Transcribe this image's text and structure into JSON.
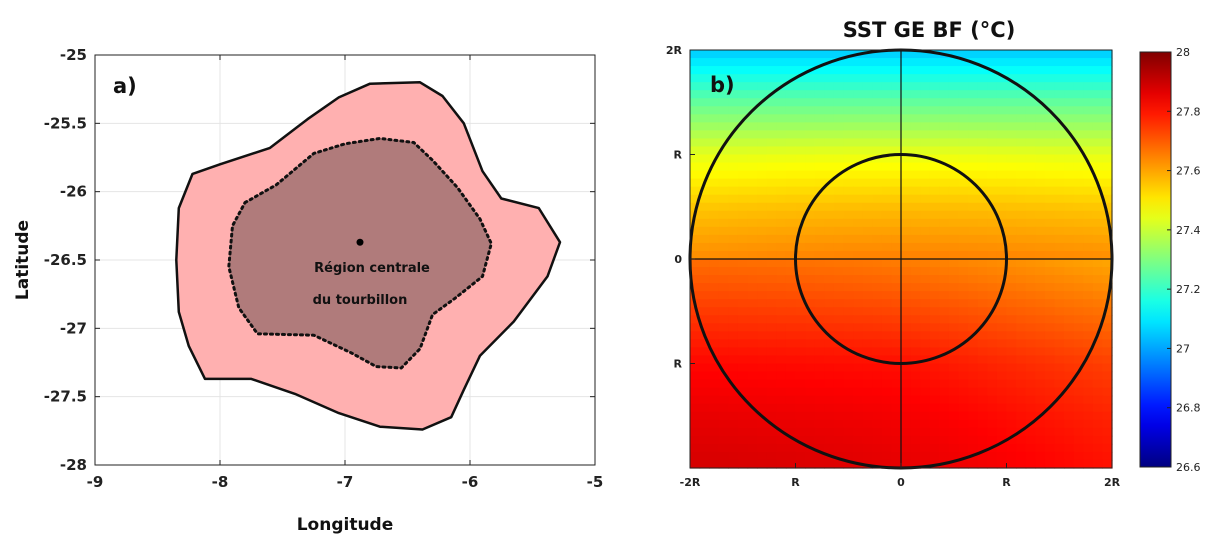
{
  "chart_data": [
    {
      "type": "area",
      "panel_label": "a)",
      "xlabel": "Longitude",
      "ylabel": "Latitude",
      "xlim": [
        -9,
        -5
      ],
      "ylim": [
        -28,
        -25
      ],
      "xticks": [
        -9,
        -8,
        -7,
        -6,
        -5
      ],
      "yticks": [
        -28,
        -27.5,
        -27,
        -26.5,
        -26,
        -25.5,
        -25
      ],
      "xtick_labels": [
        "-9",
        "-8",
        "-7",
        "-6",
        "-5"
      ],
      "ytick_labels": [
        "-28",
        "-27.5",
        "-27",
        "-26.5",
        "-26",
        "-25.5",
        "-25"
      ],
      "grid": true,
      "outer_contour": {
        "fill": "#ffb0b0",
        "points": [
          [
            -8.22,
            -25.87
          ],
          [
            -8.0,
            -25.8
          ],
          [
            -7.6,
            -25.68
          ],
          [
            -7.3,
            -25.47
          ],
          [
            -7.05,
            -25.31
          ],
          [
            -6.8,
            -25.21
          ],
          [
            -6.4,
            -25.2
          ],
          [
            -6.22,
            -25.3
          ],
          [
            -6.05,
            -25.5
          ],
          [
            -5.9,
            -25.85
          ],
          [
            -5.75,
            -26.05
          ],
          [
            -5.45,
            -26.12
          ],
          [
            -5.28,
            -26.37
          ],
          [
            -5.38,
            -26.62
          ],
          [
            -5.65,
            -26.95
          ],
          [
            -5.92,
            -27.2
          ],
          [
            -6.05,
            -27.45
          ],
          [
            -6.15,
            -27.65
          ],
          [
            -6.38,
            -27.74
          ],
          [
            -6.72,
            -27.72
          ],
          [
            -7.05,
            -27.62
          ],
          [
            -7.4,
            -27.48
          ],
          [
            -7.75,
            -27.37
          ],
          [
            -8.12,
            -27.37
          ],
          [
            -8.25,
            -27.13
          ],
          [
            -8.33,
            -26.88
          ],
          [
            -8.35,
            -26.5
          ],
          [
            -8.33,
            -26.12
          ]
        ]
      },
      "inner_contour": {
        "fill": "#b07b7b",
        "line_style": "dotted",
        "points": [
          [
            -7.8,
            -26.08
          ],
          [
            -7.55,
            -25.95
          ],
          [
            -7.25,
            -25.72
          ],
          [
            -7.0,
            -25.65
          ],
          [
            -6.72,
            -25.61
          ],
          [
            -6.45,
            -25.64
          ],
          [
            -6.3,
            -25.77
          ],
          [
            -6.1,
            -25.97
          ],
          [
            -5.92,
            -26.2
          ],
          [
            -5.83,
            -26.38
          ],
          [
            -5.9,
            -26.62
          ],
          [
            -6.12,
            -26.78
          ],
          [
            -6.3,
            -26.9
          ],
          [
            -6.4,
            -27.15
          ],
          [
            -6.55,
            -27.29
          ],
          [
            -6.75,
            -27.28
          ],
          [
            -6.95,
            -27.18
          ],
          [
            -7.25,
            -27.05
          ],
          [
            -7.7,
            -27.04
          ],
          [
            -7.85,
            -26.85
          ],
          [
            -7.93,
            -26.55
          ],
          [
            -7.9,
            -26.25
          ]
        ]
      },
      "center_point": [
        -6.88,
        -26.37
      ],
      "annotation": [
        "Région centrale",
        "du tourbillon"
      ]
    },
    {
      "type": "heatmap",
      "title": "SST GE BF (°C)",
      "panel_label": "b)",
      "xlim": [
        -2,
        2
      ],
      "ylim": [
        -2,
        2
      ],
      "x_ticks": [
        -2,
        -1,
        0,
        1,
        2
      ],
      "x_tick_labels": [
        "-2R",
        "R",
        "0",
        "R",
        "2R"
      ],
      "y_ticks": [
        2,
        1,
        0,
        -1
      ],
      "y_tick_labels": [
        "2R",
        "R",
        "0",
        "R"
      ],
      "circle_radii": [
        1,
        2
      ],
      "colormap": "jet",
      "colorbar": {
        "min": 26.6,
        "max": 28,
        "ticks": [
          26.6,
          26.8,
          27,
          27.2,
          27.4,
          27.6,
          27.8,
          28
        ],
        "tick_labels": [
          "26.6",
          "26.8",
          "27",
          "27.2",
          "27.4",
          "27.6",
          "27.8",
          "28"
        ]
      },
      "field_profile": {
        "y": [
          2,
          1.5,
          1,
          0.5,
          0,
          -0.5,
          -1,
          -1.5,
          -2
        ],
        "sst": [
          27.05,
          27.26,
          27.44,
          27.55,
          27.63,
          27.7,
          27.77,
          27.81,
          27.84
        ]
      }
    }
  ]
}
